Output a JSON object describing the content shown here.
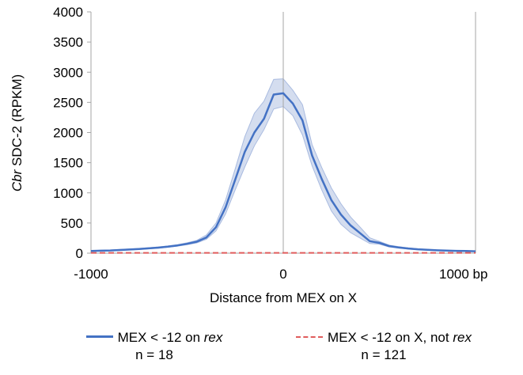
{
  "chart_data": {
    "type": "line",
    "title": "",
    "xlabel": "Distance from MEX on X",
    "ylabel_italic": "Cbr",
    "ylabel_rest": " SDC-2 (RPKM)",
    "xlim": [
      -1000,
      1000
    ],
    "ylim": [
      0,
      4000
    ],
    "y_ticks": [
      "0",
      "500",
      "1000",
      "1500",
      "2000",
      "2500",
      "3000",
      "3500",
      "4000"
    ],
    "x_ticks": [
      "-1000",
      "0",
      "1000 bp"
    ],
    "x_tick_values": [
      -1000,
      0,
      1000
    ],
    "y_tick_values": [
      0,
      500,
      1000,
      1500,
      2000,
      2500,
      3000,
      3500,
      4000
    ],
    "grid": "vertical",
    "legend_position": "bottom",
    "series": [
      {
        "name_plain": "MEX < -12 on ",
        "name_italic": "rex",
        "name_after": "",
        "n_label": "n = 18",
        "style": "solid",
        "color": "#4472C4",
        "band_color": "#C5D1EA",
        "x": [
          -1000,
          -950,
          -900,
          -850,
          -800,
          -750,
          -700,
          -650,
          -600,
          -550,
          -500,
          -450,
          -400,
          -350,
          -300,
          -250,
          -200,
          -150,
          -100,
          -50,
          0,
          50,
          100,
          150,
          200,
          250,
          300,
          350,
          400,
          450,
          500,
          550,
          600,
          650,
          700,
          750,
          800,
          850,
          900,
          950,
          1000
        ],
        "y": [
          35,
          40,
          45,
          52,
          60,
          70,
          80,
          92,
          108,
          128,
          155,
          190,
          260,
          430,
          760,
          1220,
          1680,
          2000,
          2230,
          2630,
          2650,
          2480,
          2200,
          1620,
          1230,
          880,
          640,
          460,
          330,
          200,
          170,
          118,
          95,
          78,
          64,
          55,
          47,
          42,
          38,
          35,
          32
        ],
        "y_lower": [
          30,
          34,
          39,
          45,
          53,
          62,
          72,
          83,
          98,
          117,
          140,
          170,
          230,
          370,
          650,
          1050,
          1430,
          1780,
          2050,
          2390,
          2430,
          2280,
          1960,
          1450,
          1050,
          700,
          480,
          340,
          250,
          160,
          150,
          104,
          84,
          70,
          57,
          49,
          42,
          37,
          33,
          30,
          28
        ],
        "y_upper": [
          42,
          47,
          53,
          60,
          68,
          79,
          90,
          103,
          120,
          142,
          172,
          212,
          300,
          500,
          880,
          1400,
          1930,
          2320,
          2520,
          2880,
          2890,
          2700,
          2460,
          1800,
          1420,
          1080,
          820,
          600,
          430,
          255,
          195,
          133,
          108,
          88,
          72,
          62,
          53,
          47,
          43,
          40,
          37
        ]
      },
      {
        "name_plain": "MEX < -12 on X, not ",
        "name_italic": "rex",
        "name_after": "",
        "n_label": "n = 121",
        "style": "dashed",
        "color": "#E05C5C",
        "x": [
          -1000,
          -500,
          0,
          500,
          1000
        ],
        "y": [
          5,
          5,
          5,
          5,
          5
        ]
      }
    ]
  }
}
